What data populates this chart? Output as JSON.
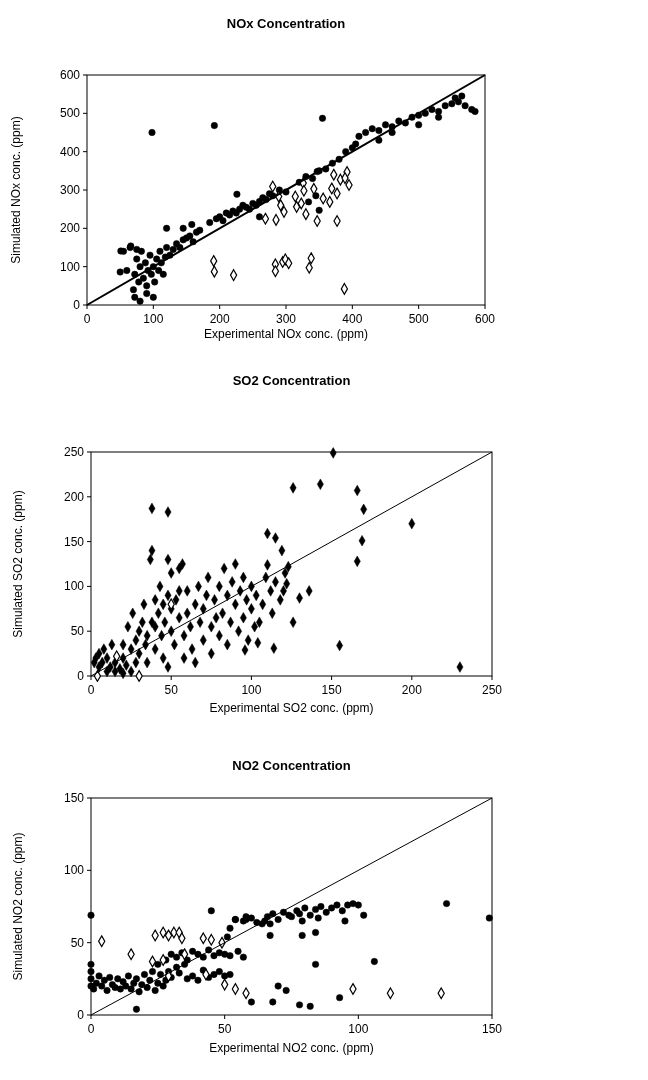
{
  "chart_data": [
    {
      "type": "scatter",
      "title": "NOx Concentration",
      "xlabel": "Experimental NOx conc. (ppm)",
      "ylabel": "Simulated NOx conc. (ppm)",
      "xlim": [
        0,
        600
      ],
      "ylim": [
        0,
        600
      ],
      "xticks": [
        0,
        100,
        200,
        300,
        400,
        500,
        600
      ],
      "yticks": [
        0,
        100,
        200,
        300,
        400,
        500,
        600
      ],
      "grid": false,
      "series": [
        {
          "color": "#000000",
          "marker": "circle",
          "x": [
            98,
            192,
            355,
            70,
            72,
            75,
            78,
            80,
            82,
            85,
            88,
            90,
            92,
            95,
            97,
            100,
            102,
            105,
            108,
            110,
            112,
            115,
            118,
            120,
            125,
            130,
            135,
            140,
            145,
            150,
            155,
            160,
            165,
            170,
            60,
            55,
            65,
            75,
            72,
            80,
            90,
            100,
            120,
            145,
            158,
            51,
            50,
            66,
            185,
            195,
            200,
            205,
            210,
            215,
            220,
            225,
            230,
            235,
            240,
            245,
            250,
            255,
            260,
            265,
            270,
            275,
            280,
            290,
            300,
            226,
            320,
            330,
            340,
            350,
            360,
            370,
            380,
            390,
            400,
            405,
            410,
            420,
            430,
            440,
            450,
            460,
            470,
            480,
            490,
            500,
            510,
            520,
            530,
            540,
            550,
            560,
            570,
            580,
            585,
            440,
            460,
            500,
            530,
            555,
            565,
            334,
            345,
            260,
            347,
            350
          ],
          "values": [
            450,
            468,
            487,
            40,
            80,
            120,
            60,
            100,
            140,
            70,
            110,
            50,
            90,
            130,
            80,
            100,
            60,
            120,
            90,
            140,
            110,
            80,
            125,
            150,
            130,
            145,
            160,
            150,
            170,
            175,
            180,
            165,
            190,
            195,
            90,
            140,
            150,
            145,
            20,
            10,
            30,
            20,
            200,
            200,
            210,
            141,
            86,
            154,
            215,
            225,
            230,
            220,
            240,
            235,
            245,
            240,
            250,
            260,
            255,
            250,
            265,
            260,
            270,
            280,
            275,
            290,
            285,
            300,
            295,
            289,
            320,
            335,
            330,
            350,
            355,
            370,
            380,
            400,
            410,
            420,
            440,
            450,
            460,
            455,
            470,
            465,
            480,
            475,
            490,
            495,
            500,
            510,
            505,
            520,
            525,
            530,
            520,
            510,
            505,
            430,
            450,
            470,
            490,
            540,
            545,
            269,
            285,
            230,
            348,
            247
          ]
        },
        {
          "color": "#ffffff",
          "marker": "diamond",
          "x": [
            191,
            192,
            221,
            284,
            284,
            295,
            299,
            304,
            335,
            338,
            388,
            269,
            285,
            280,
            289,
            292,
            297,
            314,
            316,
            323,
            326,
            327,
            330,
            342,
            347,
            356,
            366,
            372,
            369,
            377,
            377,
            382,
            392,
            395,
            389
          ],
          "values": [
            115,
            87,
            78,
            106,
            88,
            112,
            119,
            109,
            97,
            122,
            42,
            225,
            222,
            309,
            283,
            260,
            243,
            283,
            256,
            265,
            318,
            298,
            237,
            303,
            219,
            278,
            269,
            340,
            304,
            219,
            291,
            327,
            347,
            313,
            331
          ]
        },
        {
          "type": "line",
          "color": "#000000",
          "marker": "none",
          "x": [
            0,
            600
          ],
          "values": [
            0,
            600
          ]
        }
      ]
    },
    {
      "type": "scatter",
      "title": "SO2 Concentration",
      "xlabel": "Experimental SO2 conc. (ppm)",
      "ylabel": "Simulated SO2 conc. (ppm)",
      "xlim": [
        0,
        250
      ],
      "ylim": [
        0,
        250
      ],
      "xticks": [
        0,
        50,
        100,
        150,
        200,
        250
      ],
      "yticks": [
        0,
        50,
        100,
        150,
        200,
        250
      ],
      "grid": false,
      "series": [
        {
          "color": "#000000",
          "marker": "diamond",
          "x": [
            151,
            126,
            143,
            166,
            170,
            169,
            166,
            155,
            230,
            200,
            38,
            48,
            110,
            115,
            119,
            123,
            110,
            122,
            130,
            136,
            126,
            114,
            104,
            96,
            2,
            3,
            5,
            5,
            7,
            8,
            10,
            10,
            12,
            13,
            15,
            15,
            18,
            20,
            20,
            22,
            25,
            25,
            28,
            28,
            30,
            30,
            32,
            34,
            35,
            35,
            37,
            38,
            38,
            40,
            40,
            42,
            44,
            45,
            45,
            46,
            48,
            48,
            50,
            50,
            52,
            53,
            55,
            55,
            57,
            58,
            58,
            60,
            60,
            62,
            63,
            65,
            65,
            67,
            68,
            70,
            70,
            72,
            73,
            75,
            75,
            77,
            78,
            80,
            80,
            82,
            83,
            85,
            85,
            87,
            88,
            90,
            90,
            92,
            93,
            95,
            95,
            97,
            98,
            100,
            100,
            102,
            103,
            105,
            107,
            109,
            112,
            113,
            115,
            118,
            120,
            121,
            20,
            23,
            26,
            33,
            48,
            50,
            55,
            40,
            43
          ],
          "values": [
            249,
            210,
            214,
            207,
            186,
            151,
            128,
            34,
            10,
            170,
            187,
            183,
            159,
            154,
            140,
            122,
            124,
            103,
            87,
            95,
            60,
            31,
            37,
            29,
            15,
            20,
            10,
            25,
            15,
            30,
            5,
            20,
            10,
            35,
            5,
            15,
            8,
            3,
            20,
            12,
            5,
            30,
            40,
            15,
            50,
            25,
            60,
            35,
            45,
            15,
            130,
            140,
            60,
            55,
            30,
            70,
            45,
            80,
            20,
            60,
            90,
            10,
            75,
            50,
            35,
            85,
            65,
            120,
            125,
            45,
            20,
            70,
            95,
            55,
            30,
            80,
            15,
            100,
            60,
            40,
            75,
            90,
            110,
            55,
            25,
            85,
            65,
            100,
            45,
            70,
            120,
            90,
            35,
            60,
            105,
            80,
            125,
            50,
            95,
            65,
            110,
            85,
            40,
            100,
            75,
            55,
            90,
            60,
            80,
            110,
            95,
            70,
            105,
            85,
            95,
            115,
            35,
            55,
            70,
            80,
            130,
            115,
            95,
            85,
            100
          ]
        },
        {
          "color": "#ffffff",
          "marker": "diamond",
          "x": [
            16,
            30,
            4,
            50
          ],
          "values": [
            22,
            0,
            0,
            80
          ]
        },
        {
          "type": "line",
          "color": "#000000",
          "marker": "none",
          "x": [
            0,
            250
          ],
          "values": [
            0,
            250
          ]
        }
      ]
    },
    {
      "type": "scatter",
      "title": "NO2 Concentration",
      "xlabel": "Experimental NO2 conc. (ppm)",
      "ylabel": "Simulated NO2 conc. (ppm)",
      "xlim": [
        0,
        150
      ],
      "ylim": [
        0,
        150
      ],
      "xticks": [
        0,
        50,
        100,
        150
      ],
      "yticks": [
        0,
        50,
        100,
        150
      ],
      "grid": false,
      "series": [
        {
          "color": "#000000",
          "marker": "circle",
          "x": [
            0,
            0,
            0,
            0,
            0,
            1,
            2,
            3,
            4,
            5,
            6,
            7,
            8,
            9,
            10,
            11,
            12,
            13,
            14,
            15,
            16,
            17,
            18,
            19,
            20,
            21,
            22,
            23,
            24,
            25,
            26,
            27,
            28,
            29,
            30,
            32,
            33,
            35,
            36,
            38,
            40,
            42,
            44,
            46,
            48,
            50,
            52,
            25,
            28,
            30,
            32,
            34,
            36,
            38,
            40,
            42,
            44,
            46,
            48,
            50,
            52,
            55,
            57,
            17,
            51,
            52,
            54,
            57,
            62,
            66,
            68,
            70,
            72,
            75,
            77,
            78,
            80,
            82,
            84,
            86,
            88,
            90,
            92,
            94,
            96,
            98,
            100,
            102,
            95,
            85,
            79,
            74,
            64,
            58,
            45,
            60,
            84,
            106,
            79,
            84,
            70,
            73,
            60,
            68,
            78,
            82,
            93,
            67,
            67,
            65,
            54,
            58,
            133,
            149
          ],
          "values": [
            20,
            25,
            30,
            35,
            69,
            18,
            22,
            27,
            20,
            24,
            17,
            26,
            21,
            19,
            25,
            18,
            23,
            20,
            27,
            18,
            22,
            25,
            16,
            21,
            28,
            19,
            24,
            30,
            17,
            22,
            28,
            20,
            24,
            30,
            26,
            33,
            29,
            35,
            25,
            27,
            24,
            31,
            26,
            28,
            30,
            27,
            28,
            35,
            38,
            42,
            40,
            43,
            38,
            44,
            42,
            40,
            45,
            41,
            43,
            42,
            41,
            44,
            40,
            4,
            54,
            60,
            66,
            65,
            64,
            68,
            70,
            66,
            71,
            68,
            72,
            70,
            74,
            69,
            73,
            75,
            71,
            74,
            76,
            72,
            76,
            77,
            76,
            69,
            65,
            67,
            65,
            69,
            63,
            68,
            72,
            67,
            35,
            37,
            55,
            57,
            20,
            17,
            9,
            9,
            7,
            6,
            12,
            55,
            63,
            65,
            66,
            66,
            77,
            67
          ]
        },
        {
          "color": "#ffffff",
          "marker": "diamond",
          "x": [
            4,
            15,
            23,
            27,
            24,
            27,
            29,
            31,
            33,
            34,
            35,
            42,
            45,
            49,
            50,
            54,
            58,
            98,
            112,
            131,
            43,
            29
          ],
          "values": [
            51,
            42,
            37,
            38,
            55,
            57,
            55,
            57,
            57,
            53,
            42,
            53,
            52,
            50,
            21,
            18,
            15,
            18,
            15,
            15,
            28,
            27
          ]
        },
        {
          "type": "line",
          "color": "#000000",
          "marker": "none",
          "x": [
            0,
            150
          ],
          "values": [
            0,
            150
          ]
        }
      ]
    }
  ]
}
